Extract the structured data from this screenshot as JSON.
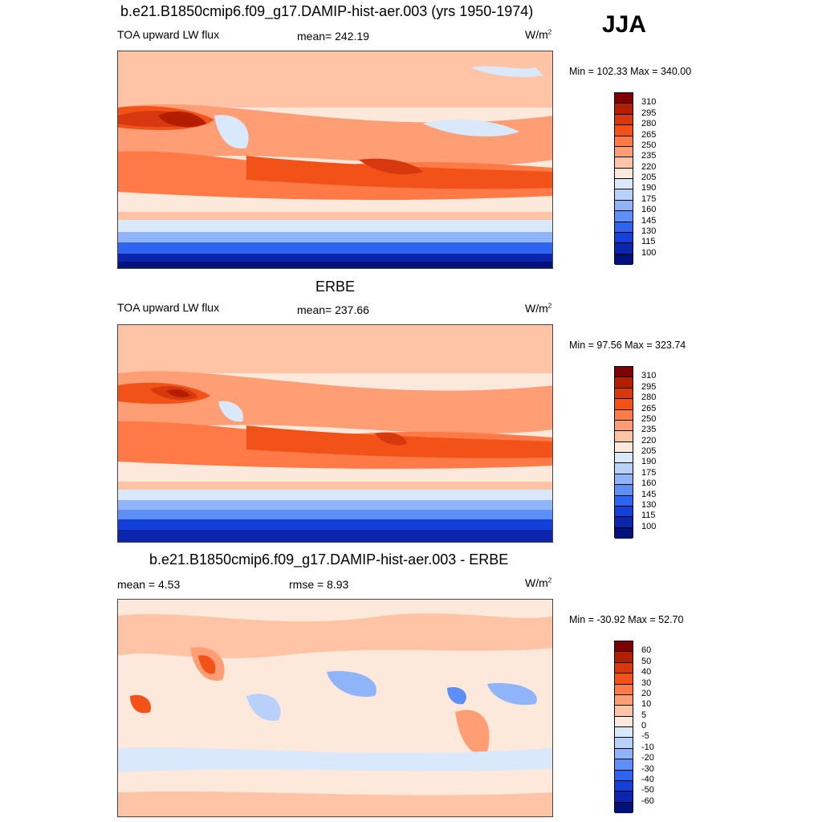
{
  "season": "JJA",
  "panels": [
    {
      "title": "b.e21.B1850cmip6.f09_g17.DAMIP-hist-aer.003 (yrs 1950-1974)",
      "left_label": "TOA upward LW flux",
      "center_label": "mean= 242.19",
      "units": "W/m",
      "units_sup": "2",
      "minmax": "Min = 102.33 Max = 340.00"
    },
    {
      "title": "ERBE",
      "left_label": "TOA upward LW flux",
      "center_label": "mean= 237.66",
      "units": "W/m",
      "units_sup": "2",
      "minmax": "Min =  97.56 Max = 323.74"
    },
    {
      "title": "b.e21.B1850cmip6.f09_g17.DAMIP-hist-aer.003 - ERBE",
      "left_label": "mean =   4.53",
      "center_label": "rmse =   8.93",
      "units": "W/m",
      "units_sup": "2",
      "minmax": "Min = -30.92 Max =  52.70"
    }
  ],
  "colorbar_flux": {
    "labels": [
      "310",
      "295",
      "280",
      "265",
      "250",
      "235",
      "220",
      "205",
      "190",
      "175",
      "160",
      "145",
      "130",
      "115",
      "100"
    ],
    "colors": [
      "#7f0000",
      "#b41e00",
      "#d8380d",
      "#f25118",
      "#ff7a46",
      "#ff9e74",
      "#ffc3a5",
      "#fde9dc",
      "#d9e8fb",
      "#b7d1fa",
      "#8fb4fa",
      "#5e8ff6",
      "#2f64f0",
      "#1340d8",
      "#0b26ad",
      "#03117b"
    ]
  },
  "colorbar_diff": {
    "labels": [
      "60",
      "50",
      "40",
      "30",
      "20",
      "10",
      "5",
      "0",
      "-5",
      "-10",
      "-20",
      "-30",
      "-40",
      "-50",
      "-60"
    ],
    "colors": [
      "#7f0000",
      "#b41e00",
      "#d8380d",
      "#f25118",
      "#ff7a46",
      "#ff9e74",
      "#ffc3a5",
      "#fde9dc",
      "#d9e8fb",
      "#b7d1fa",
      "#8fb4fa",
      "#5e8ff6",
      "#2f64f0",
      "#1340d8",
      "#0b26ad",
      "#03117b"
    ]
  },
  "chart_data": [
    {
      "type": "heatmap",
      "title": "b.e21.B1850cmip6.f09_g17.DAMIP-hist-aer.003 (yrs 1950-1974)",
      "variable": "TOA upward LW flux",
      "units": "W/m2",
      "mean": 242.19,
      "min": 102.33,
      "max": 340.0,
      "contour_levels": [
        100,
        115,
        130,
        145,
        160,
        175,
        190,
        205,
        220,
        235,
        250,
        265,
        280,
        295,
        310
      ]
    },
    {
      "type": "heatmap",
      "title": "ERBE",
      "variable": "TOA upward LW flux",
      "units": "W/m2",
      "mean": 237.66,
      "min": 97.56,
      "max": 323.74,
      "contour_levels": [
        100,
        115,
        130,
        145,
        160,
        175,
        190,
        205,
        220,
        235,
        250,
        265,
        280,
        295,
        310
      ]
    },
    {
      "type": "heatmap",
      "title": "b.e21.B1850cmip6.f09_g17.DAMIP-hist-aer.003 - ERBE",
      "units": "W/m2",
      "mean": 4.53,
      "rmse": 8.93,
      "min": -30.92,
      "max": 52.7,
      "contour_levels": [
        -60,
        -50,
        -40,
        -30,
        -20,
        -10,
        -5,
        0,
        5,
        10,
        20,
        30,
        40,
        50,
        60
      ]
    }
  ]
}
